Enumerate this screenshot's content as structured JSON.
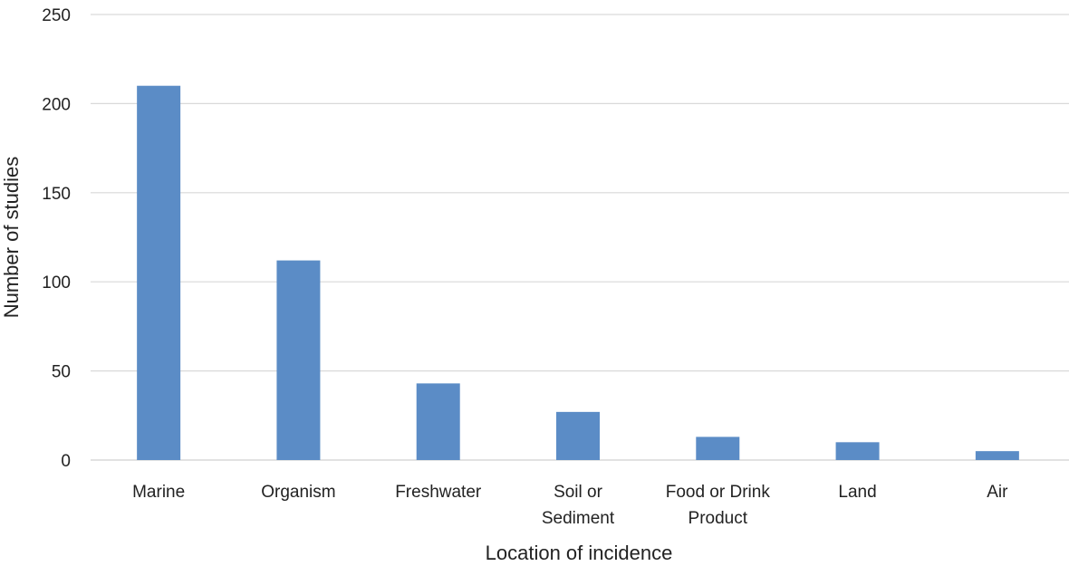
{
  "chart_data": {
    "type": "bar",
    "title": "",
    "xlabel": "Location of incidence",
    "ylabel": "Number of studies",
    "categories": [
      [
        "Marine"
      ],
      [
        "Organism"
      ],
      [
        "Freshwater"
      ],
      [
        "Soil or",
        "Sediment"
      ],
      [
        "Food or Drink",
        "Product"
      ],
      [
        "Land"
      ],
      [
        "Air"
      ]
    ],
    "values": [
      210,
      112,
      43,
      27,
      13,
      10,
      5
    ],
    "ylim": [
      0,
      250
    ],
    "yticks": [
      0,
      50,
      100,
      150,
      200,
      250
    ],
    "grid": true,
    "bar_color": "#5b8cc6",
    "grid_color": "#d9d9d9"
  }
}
